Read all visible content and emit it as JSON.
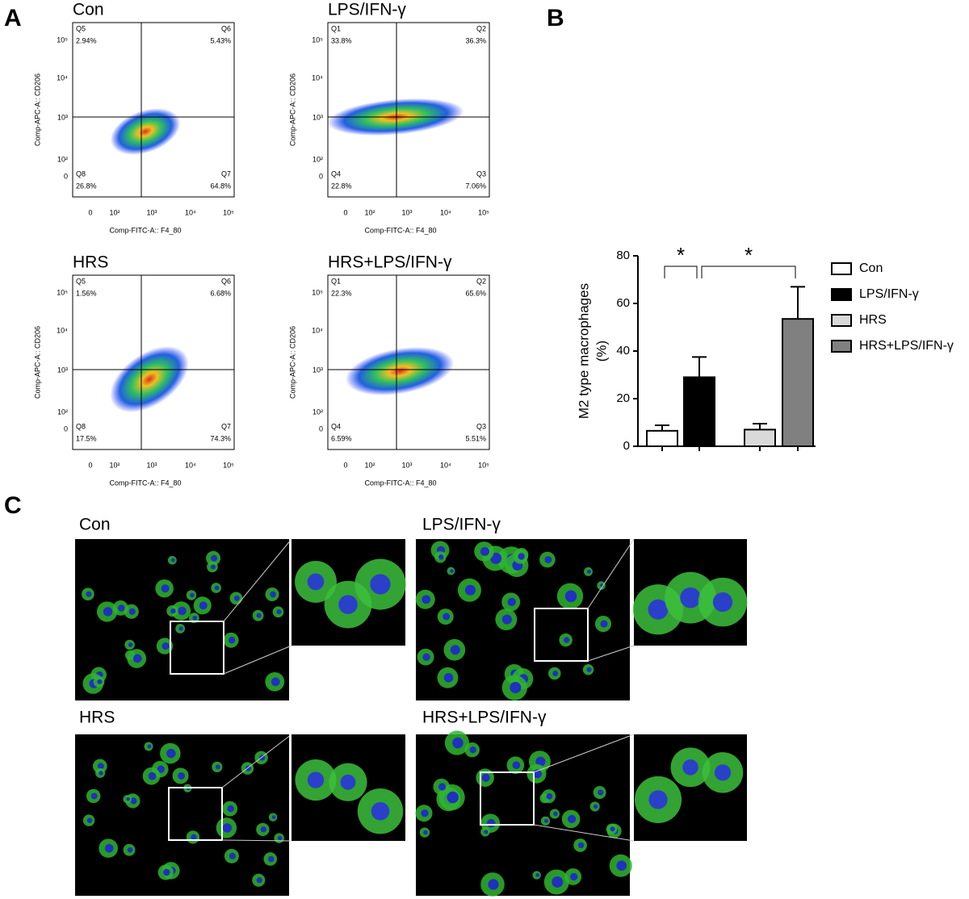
{
  "panel_labels": [
    "A",
    "B",
    "C"
  ],
  "flow": {
    "x_axis_label": "Comp-FITC-A:: F4_80",
    "y_axis_label": "Comp-APC-A:: CD206",
    "x_tick_labels": [
      "0",
      "10²",
      "10³",
      "10⁴",
      "10⁵"
    ],
    "y_tick_labels": [
      "10⁵",
      "10⁴",
      "10³",
      "10²",
      "0"
    ],
    "plots": [
      {
        "title": "Con",
        "quadrants": [
          {
            "name": "Q5",
            "percent": "2.94%"
          },
          {
            "name": "Q6",
            "percent": "5.43%"
          },
          {
            "name": "Q8",
            "percent": "26.8%"
          },
          {
            "name": "Q7",
            "percent": "64.8%"
          }
        ]
      },
      {
        "title": "LPS/IFN-γ",
        "quadrants": [
          {
            "name": "Q1",
            "percent": "33.8%"
          },
          {
            "name": "Q2",
            "percent": "36.3%"
          },
          {
            "name": "Q4",
            "percent": "22.8%"
          },
          {
            "name": "Q3",
            "percent": "7.06%"
          }
        ]
      },
      {
        "title": "HRS",
        "quadrants": [
          {
            "name": "Q5",
            "percent": "1.56%"
          },
          {
            "name": "Q6",
            "percent": "6.68%"
          },
          {
            "name": "Q8",
            "percent": "17.5%"
          },
          {
            "name": "Q7",
            "percent": "74.3%"
          }
        ]
      },
      {
        "title": "HRS+LPS/IFN-γ",
        "quadrants": [
          {
            "name": "Q1",
            "percent": "22.3%"
          },
          {
            "name": "Q2",
            "percent": "65.6%"
          },
          {
            "name": "Q4",
            "percent": "6.59%"
          },
          {
            "name": "Q3",
            "percent": "5.51%"
          }
        ]
      }
    ]
  },
  "chart_data": {
    "type": "bar",
    "categories": [
      "Con",
      "LPS/IFN-γ",
      "HRS",
      "HRS+LPS/IFN-γ"
    ],
    "values": [
      6.5,
      29,
      7,
      53.5
    ],
    "errors": [
      2.3,
      8.5,
      2.5,
      13.5
    ],
    "colors": [
      "#ffffff",
      "#000000",
      "#d9d9d9",
      "#808080"
    ],
    "ylabel": [
      "M2 type macrophages",
      "(%)"
    ],
    "ylim": [
      0,
      80
    ],
    "yticks": [
      0,
      20,
      40,
      60,
      80
    ],
    "annotations": [
      "*",
      "*"
    ]
  },
  "micrographs": {
    "titles": [
      "Con",
      "LPS/IFN-γ",
      "HRS",
      "HRS+LPS/IFN-γ"
    ]
  }
}
